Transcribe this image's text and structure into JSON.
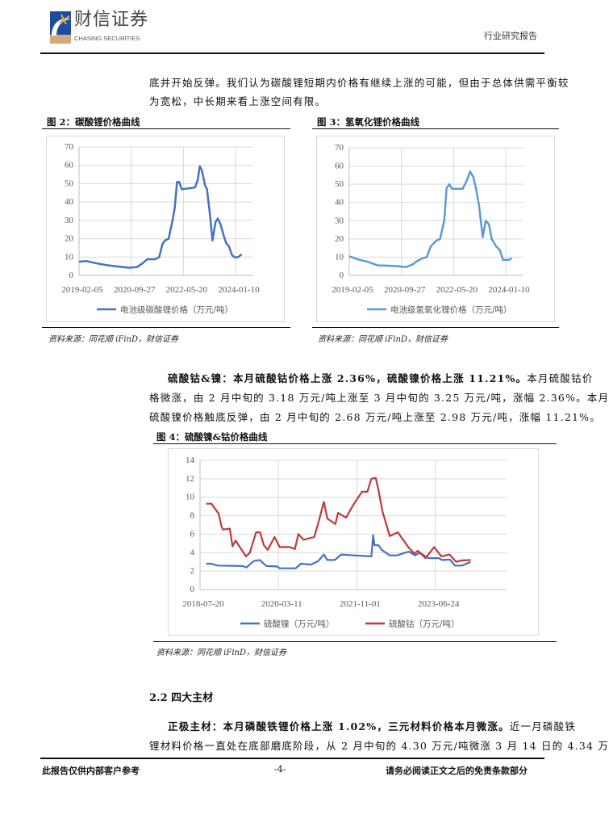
{
  "header": {
    "logo_cn": "财信证券",
    "logo_en": "CHASING SECURITIES",
    "report_type": "行业研究报告"
  },
  "intro": {
    "lines": [
      "底并开始反弹。我们认为碳酸锂短期内价格有继续上涨的可能，但由于总体供需平衡较",
      "为宽松，中长期来看上涨空间有限。"
    ]
  },
  "fig2": {
    "title": "图 2：碳酸锂价格曲线",
    "source": "资料来源：同花顺 iFinD，财信证券"
  },
  "fig3": {
    "title": "图 3：氢氧化锂价格曲线",
    "source": "资料来源：同花顺 iFinD，财信证券"
  },
  "para_cobalt": {
    "bold": "硫酸钴&镍：本月硫酸钴价格上涨 2.36%，硫酸镍价格上涨 11.21%。",
    "line1_rest": "本月硫酸钴价",
    "line2": "格微涨，由 2 月中旬的 3.18 万元/吨上涨至 3 月中旬的 3.25 万元/吨，涨幅 2.36%。本月",
    "line3": "硫酸镍价格触底反弹，由 2 月中旬的 2.68 万元/吨上涨至 2.98 万元/吨，涨幅 11.21%。"
  },
  "fig4": {
    "title": "图 4：硫酸镍&钴价格曲线",
    "source": "资料来源：同花顺 iFinD，财信证券"
  },
  "section": {
    "heading": "2.2 四大主材"
  },
  "para_cathode": {
    "bold": "正极主材：本月磷酸铁锂价格上涨 1.02%，三元材料价格本月微涨。",
    "line1_rest": "近一月磷酸铁",
    "line2": "锂材料价格一直处在底部磨底阶段，从 2 月中旬的 4.30 万元/吨微涨 3 月 14 日的 4.34 万"
  },
  "footer": {
    "left": "此报告仅供内部客户参考",
    "page": "-4-",
    "right": "请务必阅读正文之后的免责条款部分"
  },
  "colors": {
    "lithium_carbonate": "#4472c4",
    "lithium_hydroxide": "#5b9bd5",
    "nickel": "#4472c4",
    "cobalt": "#c0393b"
  },
  "chart_data": [
    {
      "type": "line",
      "title": "碳酸锂价格曲线",
      "ylim": [
        0,
        70
      ],
      "yticks": [
        0,
        10,
        20,
        30,
        40,
        50,
        60,
        70
      ],
      "xticks": [
        "2019-02-05",
        "2020-09-27",
        "2022-05-20",
        "2024-01-10"
      ],
      "xlim": [
        "2019-02-05",
        "2024-08-01"
      ],
      "grid": true,
      "legend": "bottom",
      "series": [
        {
          "name": "电池级碳酸锂价格（万元/吨）",
          "color": "#4472c4",
          "points": [
            [
              "2019-02-05",
              7.5
            ],
            [
              "2019-05-01",
              7.8
            ],
            [
              "2019-09-01",
              6.5
            ],
            [
              "2020-01-01",
              5.5
            ],
            [
              "2020-05-01",
              4.8
            ],
            [
              "2020-09-01",
              4.2
            ],
            [
              "2020-12-01",
              4.5
            ],
            [
              "2021-02-01",
              6.5
            ],
            [
              "2021-04-01",
              8.8
            ],
            [
              "2021-07-01",
              8.8
            ],
            [
              "2021-08-15",
              10
            ],
            [
              "2021-09-20",
              17
            ],
            [
              "2021-10-20",
              19
            ],
            [
              "2021-12-01",
              20
            ],
            [
              "2022-01-15",
              30
            ],
            [
              "2022-02-10",
              37
            ],
            [
              "2022-03-08",
              51
            ],
            [
              "2022-04-01",
              51
            ],
            [
              "2022-05-01",
              47
            ],
            [
              "2022-08-01",
              47.5
            ],
            [
              "2022-10-01",
              48
            ],
            [
              "2022-11-01",
              52
            ],
            [
              "2022-11-25",
              59.5
            ],
            [
              "2022-12-20",
              57
            ],
            [
              "2023-01-25",
              49
            ],
            [
              "2023-02-15",
              47
            ],
            [
              "2023-03-25",
              32
            ],
            [
              "2023-04-20",
              19
            ],
            [
              "2023-05-25",
              29
            ],
            [
              "2023-06-20",
              31
            ],
            [
              "2023-07-20",
              28
            ],
            [
              "2023-08-25",
              22
            ],
            [
              "2023-09-25",
              17.5
            ],
            [
              "2023-10-25",
              16
            ],
            [
              "2023-12-01",
              11
            ],
            [
              "2024-01-01",
              9.8
            ],
            [
              "2024-02-10",
              10
            ],
            [
              "2024-03-20",
              11.5
            ]
          ]
        }
      ]
    },
    {
      "type": "line",
      "title": "氢氧化锂价格曲线",
      "ylim": [
        0,
        70
      ],
      "yticks": [
        0,
        10,
        20,
        30,
        40,
        50,
        60,
        70
      ],
      "xticks": [
        "2019-02-05",
        "2020-09-27",
        "2022-05-20",
        "2024-01-10"
      ],
      "xlim": [
        "2019-02-05",
        "2024-08-01"
      ],
      "grid": true,
      "legend": "bottom",
      "series": [
        {
          "name": "电池级氢氧化锂价格（万元/吨）",
          "color": "#5b9bd5",
          "points": [
            [
              "2019-02-05",
              10.5
            ],
            [
              "2019-05-01",
              9
            ],
            [
              "2019-09-01",
              7.5
            ],
            [
              "2020-01-01",
              5.5
            ],
            [
              "2020-05-01",
              5.3
            ],
            [
              "2020-09-01",
              5
            ],
            [
              "2020-11-15",
              4.5
            ],
            [
              "2021-02-01",
              6
            ],
            [
              "2021-04-01",
              8
            ],
            [
              "2021-06-01",
              9.5
            ],
            [
              "2021-07-15",
              10
            ],
            [
              "2021-09-01",
              16
            ],
            [
              "2021-11-01",
              19
            ],
            [
              "2021-12-15",
              20
            ],
            [
              "2022-02-01",
              30
            ],
            [
              "2022-03-01",
              48
            ],
            [
              "2022-04-01",
              50
            ],
            [
              "2022-05-01",
              47.5
            ],
            [
              "2022-09-01",
              47.5
            ],
            [
              "2022-10-20",
              52
            ],
            [
              "2022-11-25",
              57
            ],
            [
              "2023-01-01",
              54
            ],
            [
              "2023-02-01",
              48
            ],
            [
              "2023-03-10",
              38
            ],
            [
              "2023-04-20",
              21
            ],
            [
              "2023-05-25",
              30
            ],
            [
              "2023-07-01",
              28
            ],
            [
              "2023-08-01",
              20
            ],
            [
              "2023-09-20",
              16
            ],
            [
              "2023-11-01",
              14
            ],
            [
              "2023-12-10",
              8.5
            ],
            [
              "2024-02-15",
              8.5
            ],
            [
              "2024-03-20",
              9.5
            ]
          ]
        }
      ]
    },
    {
      "type": "line",
      "title": "硫酸镍&钴价格曲线",
      "ylim": [
        0,
        14
      ],
      "yticks": [
        0,
        2,
        4,
        6,
        8,
        10,
        12,
        14
      ],
      "xticks": [
        "2018-07-20",
        "2020-03-11",
        "2021-11-01",
        "2023-06-24"
      ],
      "xlim": [
        "2018-07-20",
        "2024-12-20"
      ],
      "grid": true,
      "legend": "bottom",
      "series": [
        {
          "name": "硫酸镍（万元/吨）",
          "color": "#4472c4",
          "points": [
            [
              "2018-09-05",
              2.8
            ],
            [
              "2018-10-15",
              2.8
            ],
            [
              "2018-12-01",
              2.6
            ],
            [
              "2019-06-10",
              2.55
            ],
            [
              "2019-07-10",
              2.4
            ],
            [
              "2019-09-05",
              3.1
            ],
            [
              "2019-10-20",
              3.2
            ],
            [
              "2019-12-10",
              2.55
            ],
            [
              "2020-03-01",
              2.5
            ],
            [
              "2020-03-20",
              2.3
            ],
            [
              "2020-07-20",
              2.3
            ],
            [
              "2020-08-30",
              2.8
            ],
            [
              "2020-11-15",
              2.7
            ],
            [
              "2021-01-10",
              3.1
            ],
            [
              "2021-02-21",
              3.8
            ],
            [
              "2021-03-20",
              3.2
            ],
            [
              "2021-05-15",
              3.2
            ],
            [
              "2021-07-05",
              3.8
            ],
            [
              "2021-10-10",
              3.7
            ],
            [
              "2022-02-20",
              3.6
            ],
            [
              "2022-03-05",
              5.9
            ],
            [
              "2022-03-15",
              4.8
            ],
            [
              "2022-04-15",
              4.8
            ],
            [
              "2022-05-10",
              4.3
            ],
            [
              "2022-07-10",
              3.7
            ],
            [
              "2022-09-05",
              3.7
            ],
            [
              "2022-11-05",
              4.0
            ],
            [
              "2022-12-05",
              4.1
            ],
            [
              "2023-01-20",
              3.7
            ],
            [
              "2023-02-25",
              4.0
            ],
            [
              "2023-05-01",
              3.4
            ],
            [
              "2023-07-20",
              3.4
            ],
            [
              "2023-08-15",
              3.2
            ],
            [
              "2023-10-15",
              3.25
            ],
            [
              "2023-11-20",
              2.6
            ],
            [
              "2024-01-15",
              2.6
            ],
            [
              "2024-03-20",
              3.0
            ]
          ]
        },
        {
          "name": "硫酸钴（万元/吨）",
          "color": "#c0393b",
          "points": [
            [
              "2018-09-05",
              9.3
            ],
            [
              "2018-10-15",
              9.3
            ],
            [
              "2018-12-10",
              8.2
            ],
            [
              "2019-01-01",
              6.8
            ],
            [
              "2019-01-11",
              6.5
            ],
            [
              "2019-03-05",
              6.6
            ],
            [
              "2019-03-25",
              4.7
            ],
            [
              "2019-04-18",
              5.3
            ],
            [
              "2019-07-06",
              3.6
            ],
            [
              "2019-08-05",
              4.0
            ],
            [
              "2019-09-22",
              6.2
            ],
            [
              "2019-10-22",
              6.2
            ],
            [
              "2019-11-20",
              4.8
            ],
            [
              "2019-12-20",
              4.3
            ],
            [
              "2020-02-10",
              5.7
            ],
            [
              "2020-03-20",
              4.6
            ],
            [
              "2020-06-05",
              4.6
            ],
            [
              "2020-07-15",
              4.4
            ],
            [
              "2020-08-10",
              6.0
            ],
            [
              "2020-09-20",
              5.4
            ],
            [
              "2020-12-10",
              5.7
            ],
            [
              "2021-01-15",
              7.5
            ],
            [
              "2021-02-21",
              9.5
            ],
            [
              "2021-03-20",
              7.7
            ],
            [
              "2021-05-20",
              7.1
            ],
            [
              "2021-06-10",
              8.3
            ],
            [
              "2021-08-10",
              7.8
            ],
            [
              "2021-10-10",
              9.3
            ],
            [
              "2021-12-10",
              10.6
            ],
            [
              "2022-01-20",
              10.6
            ],
            [
              "2022-02-20",
              12.0
            ],
            [
              "2022-03-25",
              12.1
            ],
            [
              "2022-04-15",
              10.8
            ],
            [
              "2022-05-15",
              8.5
            ],
            [
              "2022-07-10",
              5.8
            ],
            [
              "2022-09-10",
              6.2
            ],
            [
              "2022-12-05",
              4.5
            ],
            [
              "2023-01-15",
              3.9
            ],
            [
              "2023-02-10",
              4.2
            ],
            [
              "2023-04-10",
              3.4
            ],
            [
              "2023-06-15",
              4.6
            ],
            [
              "2023-08-10",
              3.6
            ],
            [
              "2023-10-10",
              3.8
            ],
            [
              "2023-12-01",
              3.0
            ],
            [
              "2024-01-10",
              3.15
            ],
            [
              "2024-03-20",
              3.2
            ]
          ]
        }
      ]
    }
  ]
}
